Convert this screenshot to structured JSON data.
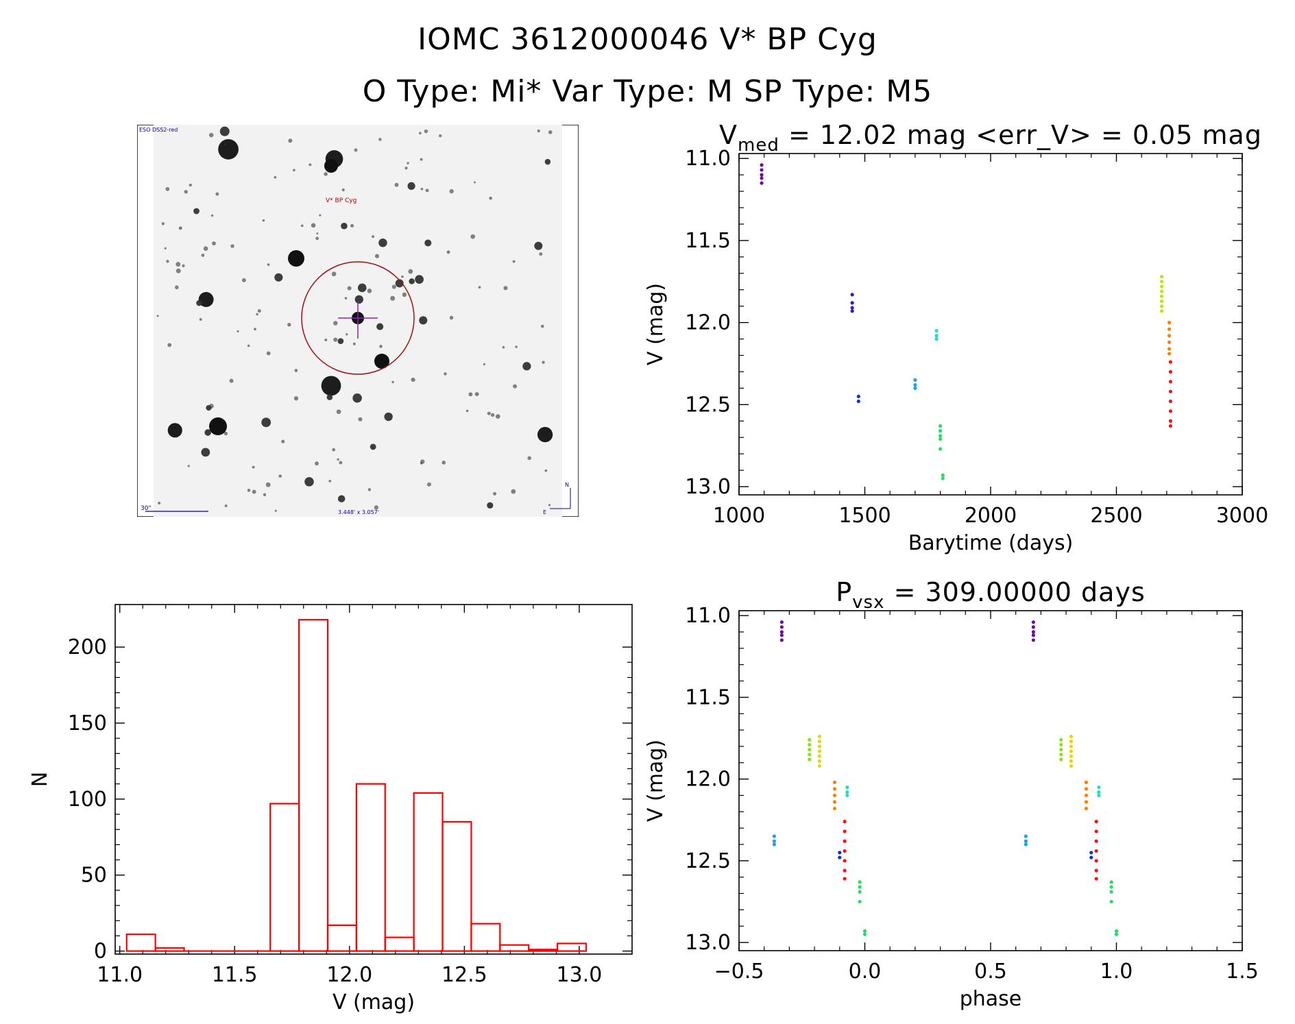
{
  "header": {
    "title_line1": "IOMC 3612000046   V* BP Cyg",
    "title_line2": "O Type: Mi*  Var Type: M  SP Type: M5"
  },
  "sky_image": {
    "survey_label": "ESO DSS2-red",
    "target_label": "V* BP Cyg",
    "scale_label": "30\"",
    "fov_label": "3.448' x 3.057'",
    "north_label": "N",
    "east_label": "E"
  },
  "chart_data": [
    {
      "id": "lightcurve",
      "type": "scatter",
      "title_main": "V",
      "title_sub": "med",
      "title_rest": " = 12.02 mag <err_V> = 0.05 mag",
      "xlabel": "Barytime (days)",
      "ylabel": "V (mag)",
      "xlim": [
        1000,
        3000
      ],
      "ylim": [
        13.05,
        10.97
      ],
      "y_inverted": true,
      "xticks": [
        1000,
        1500,
        2000,
        2500,
        3000
      ],
      "xticklabels": [
        "1000",
        "1500",
        "2000",
        "2500",
        "3000"
      ],
      "yticks": [
        11.0,
        11.5,
        12.0,
        12.5,
        13.0
      ],
      "yticklabels": [
        "11.0",
        "11.5",
        "12.0",
        "12.5",
        "13.0"
      ],
      "groups": [
        {
          "color": "#6a0dad",
          "x": 1090,
          "y": [
            11.04,
            11.07,
            11.1,
            11.12,
            11.15
          ]
        },
        {
          "color": "#3a18c8",
          "x": 1450,
          "y": [
            11.83,
            11.88,
            11.91,
            11.93
          ]
        },
        {
          "color": "#1030e0",
          "x": 1475,
          "y": [
            12.45,
            12.48
          ]
        },
        {
          "color": "#1fa0e8",
          "x": 1700,
          "y": [
            12.35,
            12.38,
            12.4
          ]
        },
        {
          "color": "#20e0c0",
          "x": 1785,
          "y": [
            12.05,
            12.08,
            12.1
          ]
        },
        {
          "color": "#22e060",
          "x": 1800,
          "y": [
            12.63,
            12.66,
            12.69,
            12.71,
            12.77
          ]
        },
        {
          "color": "#22e060",
          "x": 1810,
          "y": [
            12.93,
            12.95
          ]
        },
        {
          "color": "#c8e010",
          "x": 2680,
          "y": [
            11.72,
            11.75,
            11.78,
            11.81,
            11.84,
            11.87,
            11.9,
            11.93
          ]
        },
        {
          "color": "#ff7f00",
          "x": 2710,
          "y": [
            12.0,
            12.04,
            12.08,
            12.12,
            12.16,
            12.19
          ]
        },
        {
          "color": "#ff1010",
          "x": 2715,
          "y": [
            12.24,
            12.3,
            12.36,
            12.42,
            12.48,
            12.54,
            12.6,
            12.63
          ]
        }
      ]
    },
    {
      "id": "histogram",
      "type": "bar",
      "xlabel": "V (mag)",
      "ylabel": "N",
      "xlim": [
        10.98,
        13.23
      ],
      "ylim": [
        -2,
        228
      ],
      "xticks": [
        11.0,
        11.5,
        12.0,
        12.5,
        13.0
      ],
      "xticklabels": [
        "11.0",
        "11.5",
        "12.0",
        "12.5",
        "13.0"
      ],
      "yticks": [
        0,
        50,
        100,
        150,
        200
      ],
      "yticklabels": [
        "0",
        "50",
        "100",
        "150",
        "200"
      ],
      "bin_edges": [
        11.03,
        11.155,
        11.28,
        11.405,
        11.53,
        11.655,
        11.78,
        11.905,
        12.03,
        12.155,
        12.28,
        12.405,
        12.53,
        12.655,
        12.78,
        12.905,
        13.03
      ],
      "values": [
        11,
        2,
        0,
        0,
        0,
        97,
        218,
        17,
        110,
        9,
        104,
        85,
        18,
        4,
        1,
        5
      ]
    },
    {
      "id": "phased",
      "type": "scatter",
      "title_main": "P",
      "title_sub": "vsx",
      "title_rest": " = 309.00000 days",
      "xlabel": "phase",
      "ylabel": "V (mag)",
      "xlim": [
        -0.5,
        1.5
      ],
      "ylim": [
        13.05,
        10.97
      ],
      "y_inverted": true,
      "xticks": [
        -0.5,
        0.0,
        0.5,
        1.0,
        1.5
      ],
      "xticklabels": [
        "−0.5",
        "0.0",
        "0.5",
        "1.0",
        "1.5"
      ],
      "yticks": [
        11.0,
        11.5,
        12.0,
        12.5,
        13.0
      ],
      "yticklabels": [
        "11.0",
        "11.5",
        "12.0",
        "12.5",
        "13.0"
      ],
      "groups": [
        {
          "color": "#6a0dad",
          "x": -0.33,
          "y": [
            11.04,
            11.07,
            11.1,
            11.12,
            11.15
          ]
        },
        {
          "color": "#1fa0e8",
          "x": -0.36,
          "y": [
            12.35,
            12.38,
            12.4
          ]
        },
        {
          "color": "#8ee010",
          "x": -0.22,
          "y": [
            11.76,
            11.79,
            11.82,
            11.85,
            11.88
          ]
        },
        {
          "color": "#e8d800",
          "x": -0.18,
          "y": [
            11.74,
            11.77,
            11.8,
            11.83,
            11.86,
            11.89,
            11.92
          ]
        },
        {
          "color": "#ff7f00",
          "x": -0.12,
          "y": [
            12.02,
            12.06,
            12.1,
            12.14,
            12.18
          ]
        },
        {
          "color": "#20e0c0",
          "x": -0.07,
          "y": [
            12.05,
            12.08,
            12.1
          ]
        },
        {
          "color": "#1030e0",
          "x": -0.1,
          "y": [
            12.45,
            12.48
          ]
        },
        {
          "color": "#ff1010",
          "x": -0.08,
          "y": [
            12.26,
            12.32,
            12.38,
            12.44,
            12.5,
            12.56,
            12.61
          ]
        },
        {
          "color": "#22e060",
          "x": -0.02,
          "y": [
            12.63,
            12.66,
            12.69,
            12.75
          ]
        },
        {
          "color": "#22e060",
          "x": 0.0,
          "y": [
            12.93,
            12.95
          ]
        },
        {
          "color": "#6a0dad",
          "x": 0.67,
          "y": [
            11.04,
            11.07,
            11.1,
            11.12,
            11.15
          ]
        },
        {
          "color": "#1fa0e8",
          "x": 0.64,
          "y": [
            12.35,
            12.38,
            12.4
          ]
        },
        {
          "color": "#8ee010",
          "x": 0.78,
          "y": [
            11.76,
            11.79,
            11.82,
            11.85,
            11.88
          ]
        },
        {
          "color": "#e8d800",
          "x": 0.82,
          "y": [
            11.74,
            11.77,
            11.8,
            11.83,
            11.86,
            11.89,
            11.92
          ]
        },
        {
          "color": "#ff7f00",
          "x": 0.88,
          "y": [
            12.02,
            12.06,
            12.1,
            12.14,
            12.18
          ]
        },
        {
          "color": "#20e0c0",
          "x": 0.93,
          "y": [
            12.05,
            12.08,
            12.1
          ]
        },
        {
          "color": "#1030e0",
          "x": 0.9,
          "y": [
            12.45,
            12.48
          ]
        },
        {
          "color": "#ff1010",
          "x": 0.92,
          "y": [
            12.26,
            12.32,
            12.38,
            12.44,
            12.5,
            12.56,
            12.61
          ]
        },
        {
          "color": "#22e060",
          "x": 0.98,
          "y": [
            12.63,
            12.66,
            12.69,
            12.75
          ]
        },
        {
          "color": "#22e060",
          "x": 1.0,
          "y": [
            12.93,
            12.95
          ]
        }
      ]
    }
  ]
}
